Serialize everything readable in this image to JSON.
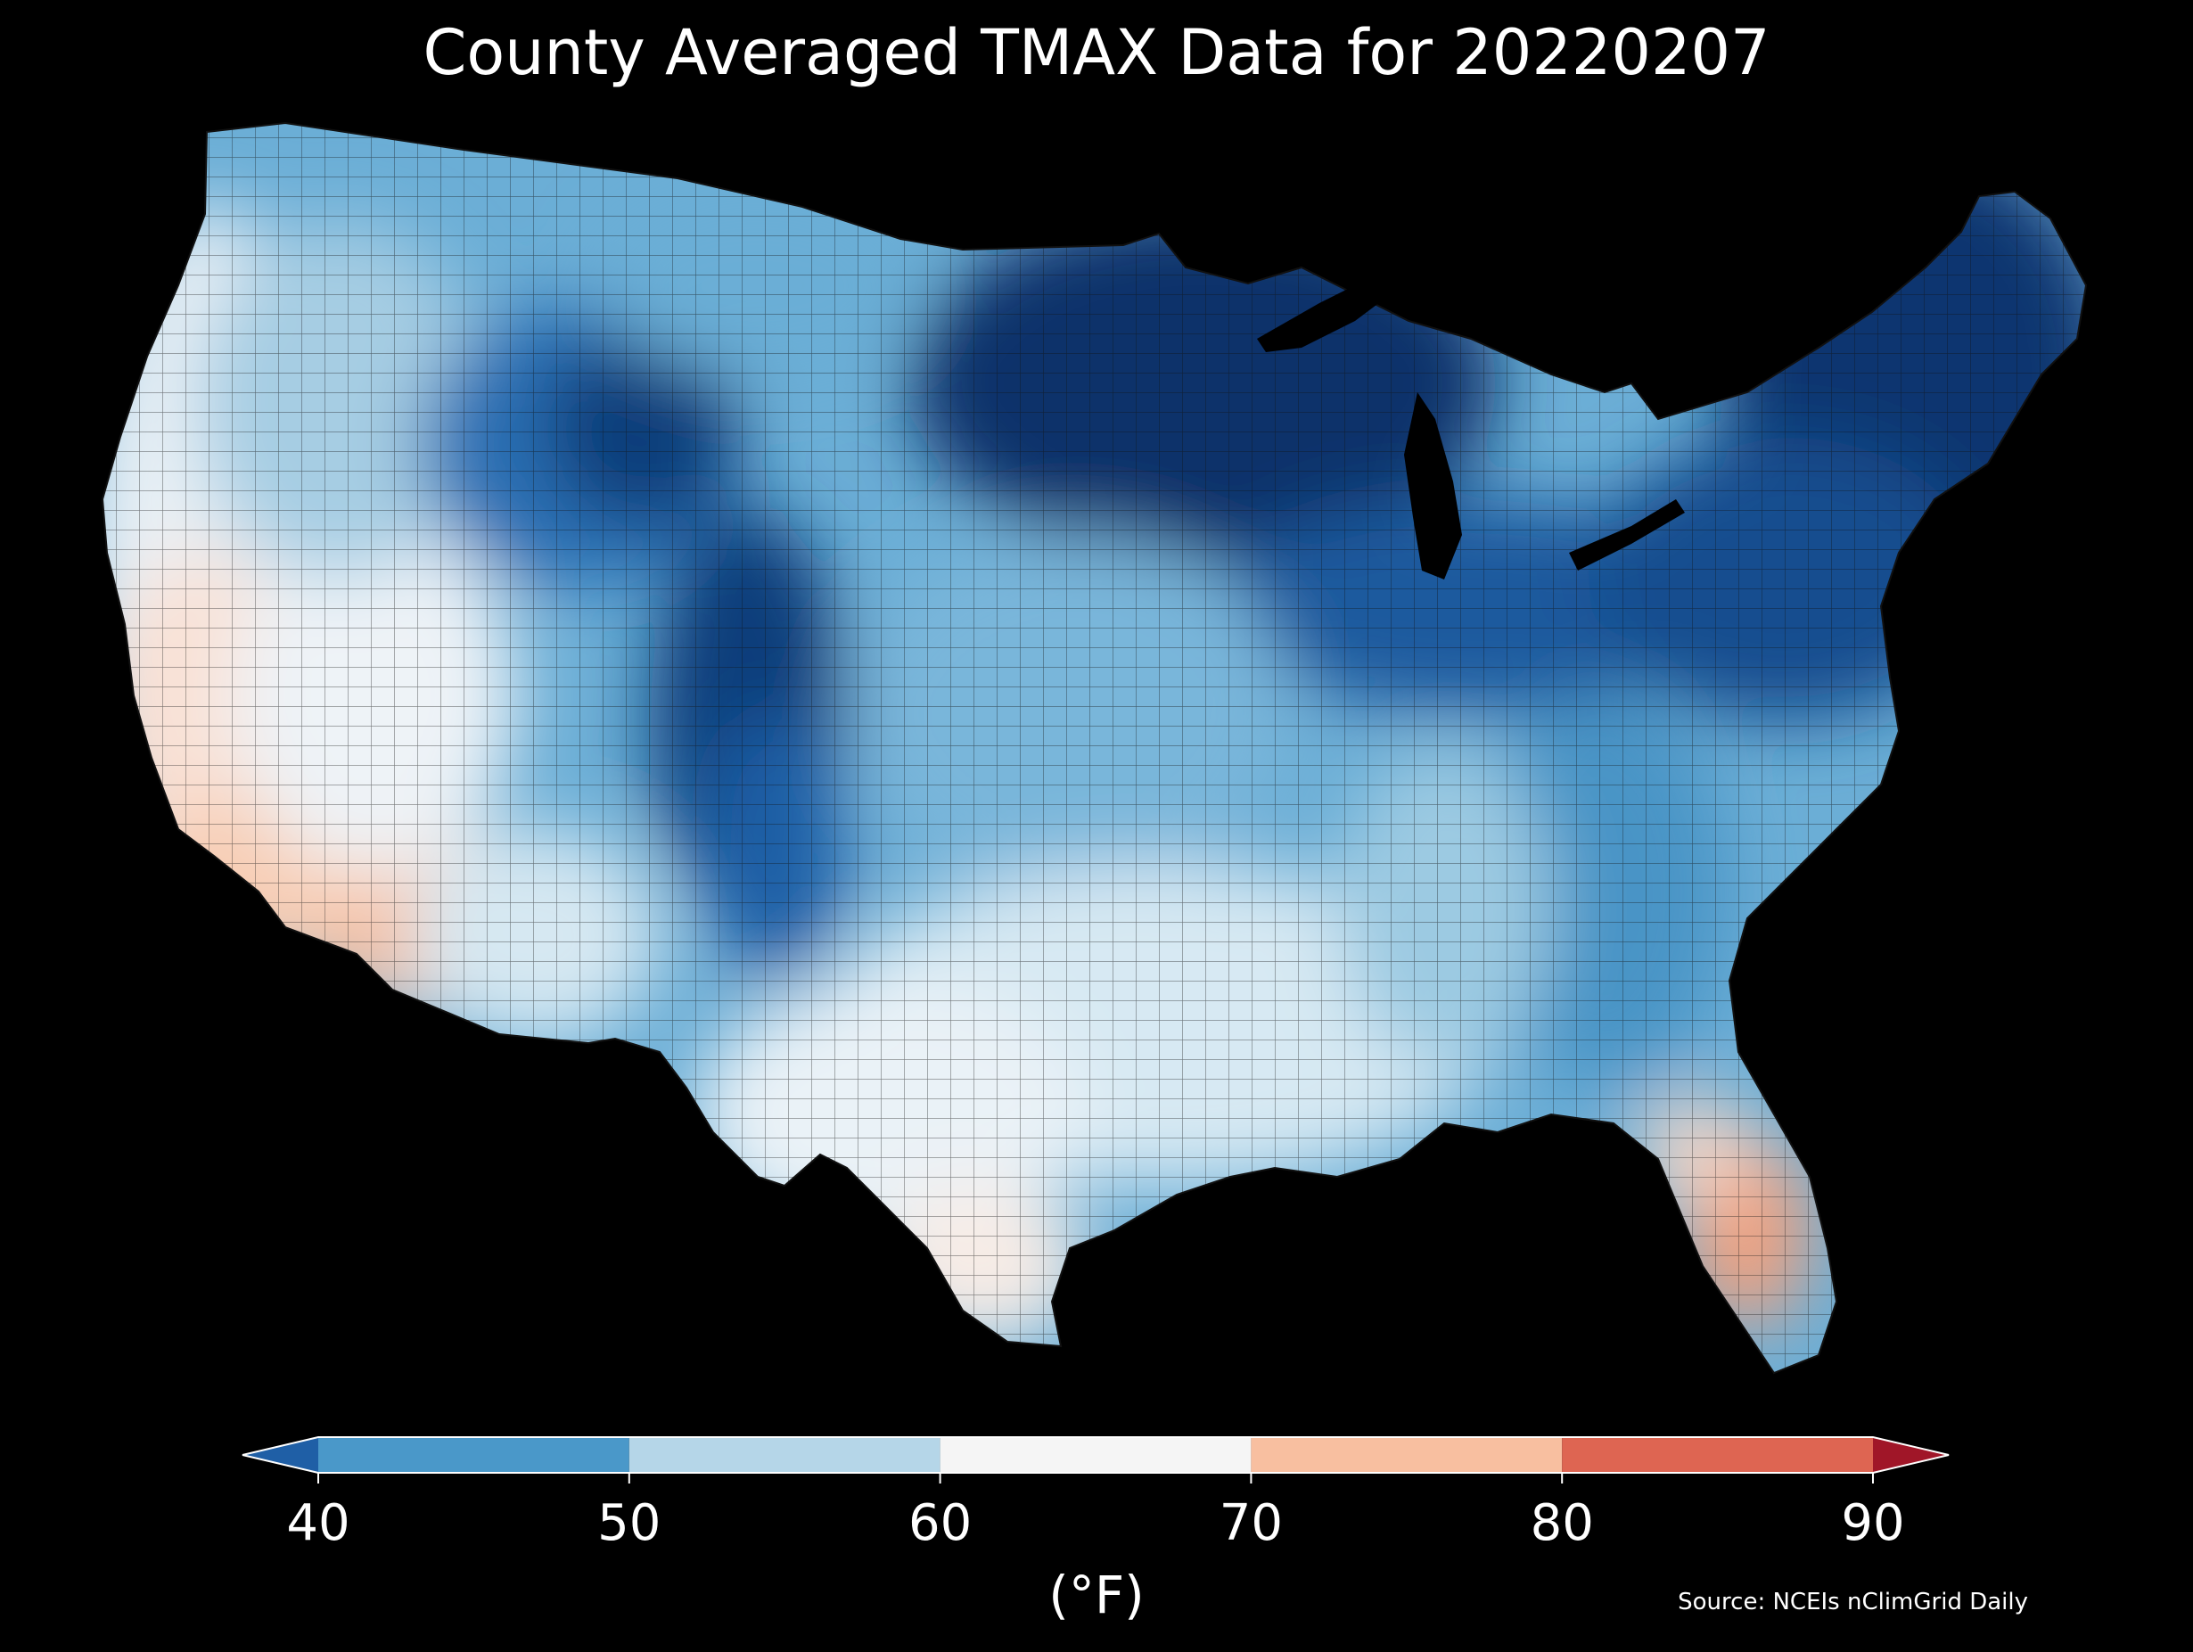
{
  "title": "County Averaged TMAX Data for 20220207",
  "colorbar": {
    "unit_label": "(°F)",
    "ticks": [
      "40",
      "50",
      "60",
      "70",
      "80",
      "90"
    ],
    "bins": [
      {
        "range": "<40",
        "color": "#1f5fa6"
      },
      {
        "range": "40-50",
        "color": "#4a98c9"
      },
      {
        "range": "50-60",
        "color": "#b5d6e8"
      },
      {
        "range": "60-70",
        "color": "#f5f5f5"
      },
      {
        "range": "70-80",
        "color": "#f8bfa0"
      },
      {
        "range": "80-90",
        "color": "#de6552"
      },
      {
        "range": ">90",
        "color": "#a01628"
      }
    ]
  },
  "source": "Source: NCEIs nClimGrid Daily",
  "colors": {
    "background": "#000000",
    "county_border": "#1a1a1a",
    "very_cold": "#08306b",
    "cold": "#2166ac",
    "cool": "#4393c3",
    "mild": "#92c5de",
    "light": "#d1e5f0",
    "neutral": "#f7f7f7",
    "warm": "#fddbc7",
    "hot": "#f4a582"
  }
}
